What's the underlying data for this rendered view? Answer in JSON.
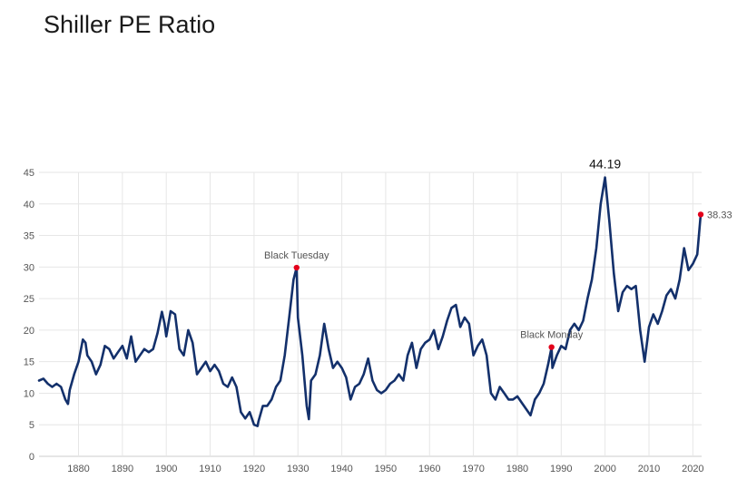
{
  "chart_data": {
    "type": "line",
    "title": "Shiller PE Ratio",
    "xlabel": "",
    "ylabel": "",
    "xlim": [
      1871,
      2022
    ],
    "ylim": [
      0,
      45
    ],
    "grid": true,
    "x_ticks": [
      1880,
      1890,
      1900,
      1910,
      1920,
      1930,
      1940,
      1950,
      1960,
      1970,
      1980,
      1990,
      2000,
      2010,
      2020
    ],
    "y_ticks": [
      0,
      5,
      10,
      15,
      20,
      25,
      30,
      35,
      40,
      45
    ],
    "series": [
      {
        "color": "#13306b",
        "x": [
          1871,
          1872,
          1873,
          1874,
          1875,
          1876,
          1877,
          1877.6,
          1878,
          1879,
          1880,
          1881,
          1881.6,
          1882,
          1883,
          1884,
          1885,
          1886,
          1887,
          1888,
          1889,
          1890,
          1891,
          1892,
          1893,
          1894,
          1895,
          1896,
          1897,
          1898,
          1899,
          1899.6,
          1900,
          1901,
          1902,
          1903,
          1904,
          1905,
          1906,
          1907,
          1908,
          1909,
          1910,
          1911,
          1912,
          1913,
          1914,
          1915,
          1916,
          1917,
          1918,
          1919,
          1920,
          1920.8,
          1921,
          1922,
          1923,
          1924,
          1925,
          1926,
          1927,
          1928,
          1929,
          1929.7,
          1930,
          1931,
          1932,
          1932.5,
          1933,
          1934,
          1935,
          1936,
          1937,
          1938,
          1939,
          1940,
          1941,
          1942,
          1943,
          1944,
          1945,
          1946,
          1947,
          1948,
          1949,
          1950,
          1951,
          1952,
          1953,
          1954,
          1955,
          1956,
          1957,
          1958,
          1959,
          1960,
          1961,
          1962,
          1963,
          1964,
          1965,
          1966,
          1967,
          1968,
          1969,
          1970,
          1971,
          1972,
          1973,
          1974,
          1975,
          1976,
          1977,
          1978,
          1979,
          1980,
          1981,
          1982,
          1983,
          1984,
          1985,
          1986,
          1987,
          1987.8,
          1988,
          1989,
          1990,
          1991,
          1992,
          1993,
          1994,
          1995,
          1996,
          1997,
          1998,
          1999,
          2000,
          2001,
          2002,
          2003,
          2004,
          2005,
          2006,
          2007,
          2008,
          2009,
          2010,
          2011,
          2012,
          2013,
          2014,
          2015,
          2016,
          2017,
          2018,
          2019,
          2020,
          2021,
          2021.8
        ],
        "y": [
          12.0,
          12.3,
          11.5,
          11.0,
          11.5,
          11.0,
          9.0,
          8.3,
          10.5,
          13.0,
          15.0,
          18.5,
          18.0,
          16.0,
          15.0,
          13.0,
          14.5,
          17.5,
          17.0,
          15.5,
          16.5,
          17.5,
          15.5,
          19.0,
          15.0,
          16.0,
          17.0,
          16.5,
          17.0,
          19.5,
          22.9,
          21.0,
          19.0,
          23.0,
          22.5,
          17.0,
          16.0,
          20.0,
          18.0,
          13.0,
          14.0,
          15.0,
          13.5,
          14.5,
          13.5,
          11.5,
          11.0,
          12.5,
          11.0,
          7.0,
          6.0,
          7.0,
          5.0,
          4.8,
          5.5,
          8.0,
          8.0,
          9.0,
          11.0,
          12.0,
          16.0,
          22.0,
          28.0,
          29.9,
          22.0,
          16.0,
          8.0,
          5.9,
          12.0,
          13.0,
          16.0,
          21.0,
          17.0,
          14.0,
          15.0,
          14.0,
          12.5,
          9.0,
          11.0,
          11.5,
          13.0,
          15.5,
          12.0,
          10.5,
          10.0,
          10.5,
          11.5,
          12.0,
          13.0,
          12.0,
          16.0,
          18.0,
          14.0,
          17.0,
          18.0,
          18.5,
          20.0,
          17.0,
          19.0,
          21.5,
          23.5,
          24.0,
          20.5,
          22.0,
          21.0,
          16.0,
          17.5,
          18.5,
          16.0,
          10.0,
          9.0,
          11.0,
          10.0,
          9.0,
          9.0,
          9.5,
          8.5,
          7.5,
          6.5,
          9.0,
          10.0,
          11.5,
          14.5,
          17.3,
          14.0,
          16.0,
          17.5,
          17.0,
          20.0,
          21.0,
          20.0,
          21.5,
          25.0,
          28.0,
          33.0,
          40.0,
          44.19,
          37.0,
          29.0,
          23.0,
          26.0,
          27.0,
          26.5,
          27.0,
          20.0,
          15.0,
          20.5,
          22.5,
          21.0,
          23.0,
          25.5,
          26.5,
          25.0,
          28.0,
          33.0,
          29.5,
          30.5,
          32.0,
          38.33
        ]
      }
    ],
    "annotations": [
      {
        "label": "Black Tuesday",
        "x": 1929.7,
        "y": 29.9
      },
      {
        "label": "Black Monday",
        "x": 1987.8,
        "y": 17.3
      }
    ],
    "peak_label": {
      "text": "44.19",
      "x": 2000,
      "y": 44.19
    },
    "last_label": {
      "text": "38.33",
      "x": 2021.8,
      "y": 38.33
    },
    "marker_color": "#e3001b",
    "grid_color": "#e6e6e6",
    "axis_color": "#cccccc"
  }
}
